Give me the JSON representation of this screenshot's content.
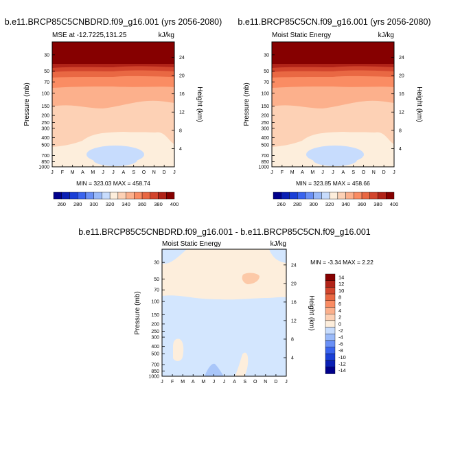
{
  "palette": {
    "fields": [
      "#00008b",
      "#0a1fb4",
      "#1a3fd6",
      "#3a64ee",
      "#6a90f6",
      "#9abaf9",
      "#c7dcfd",
      "#fdeedc",
      "#fdd1b5",
      "#fcb08c",
      "#fa8c63",
      "#e96843",
      "#d2452d",
      "#b12318",
      "#860000"
    ]
  },
  "panels": [
    {
      "id": "panel-brd",
      "title": "b.e11.BRCP85C5CNBDRD.f09_g16.001 (yrs 2056-2080)",
      "left_label": "MSE at -12.7225,131.25",
      "right_label": "kJ/kg",
      "stats": "MIN = 323.03 MAX = 458.74",
      "colorbar_labels": [
        "260",
        "280",
        "300",
        "320",
        "340",
        "360",
        "380",
        "400"
      ]
    },
    {
      "id": "panel-cn",
      "title": "b.e11.BRCP85C5CN.f09_g16.001 (yrs 2056-2080)",
      "left_label": "Moist Static Energy",
      "right_label": "kJ/kg",
      "stats": "MIN = 323.85 MAX = 458.66",
      "colorbar_labels": [
        "260",
        "280",
        "300",
        "320",
        "340",
        "360",
        "380",
        "400"
      ]
    },
    {
      "id": "panel-diff",
      "title": "b.e11.BRCP85C5CNBDRD.f09_g16.001 - b.e11.BRCP85C5CN.f09_g16.001",
      "left_label": "Moist Static Energy",
      "right_label": "kJ/kg",
      "stats": "MIN = -3.34 MAX = 2.22",
      "colorbar_labels": [
        "14",
        "12",
        "10",
        "8",
        "6",
        "4",
        "2",
        "0",
        "-2",
        "-4",
        "-6",
        "-8",
        "-10",
        "-12",
        "-14"
      ]
    }
  ],
  "chart_data": [
    {
      "type": "heatmap",
      "title": "b.e11.BRCP85C5CNBDRD.f09_g16.001 (yrs 2056-2080)",
      "subtitle": "MSE at -12.7225,131.25",
      "units": "kJ/kg",
      "xlabel": "",
      "ylabel": "Pressure (mb)",
      "y2label": "Height (km)",
      "x_ticks": [
        "J",
        "F",
        "M",
        "A",
        "M",
        "J",
        "J",
        "A",
        "S",
        "O",
        "N",
        "D",
        "J"
      ],
      "y_ticks": [
        "30",
        "50",
        "70",
        "100",
        "150",
        "200",
        "250",
        "300",
        "400",
        "500",
        "700",
        "850",
        "1000"
      ],
      "y2_ticks": [
        "24",
        "20",
        "16",
        "12",
        "8",
        "4"
      ],
      "y_scale": "log",
      "ylim": [
        1000,
        20
      ],
      "colorbar_levels": [
        260,
        270,
        280,
        290,
        300,
        310,
        320,
        330,
        340,
        350,
        360,
        370,
        380,
        390,
        400
      ],
      "min": 323.03,
      "max": 458.74
    },
    {
      "type": "heatmap",
      "title": "b.e11.BRCP85C5CN.f09_g16.001 (yrs 2056-2080)",
      "subtitle": "Moist Static Energy",
      "units": "kJ/kg",
      "xlabel": "",
      "ylabel": "Pressure (mb)",
      "y2label": "Height (km)",
      "x_ticks": [
        "J",
        "F",
        "M",
        "A",
        "M",
        "J",
        "J",
        "A",
        "S",
        "O",
        "N",
        "D",
        "J"
      ],
      "y_ticks": [
        "30",
        "50",
        "70",
        "100",
        "150",
        "200",
        "250",
        "300",
        "400",
        "500",
        "700",
        "850",
        "1000"
      ],
      "y2_ticks": [
        "24",
        "20",
        "16",
        "12",
        "8",
        "4"
      ],
      "y_scale": "log",
      "ylim": [
        1000,
        20
      ],
      "colorbar_levels": [
        260,
        270,
        280,
        290,
        300,
        310,
        320,
        330,
        340,
        350,
        360,
        370,
        380,
        390,
        400
      ],
      "min": 323.85,
      "max": 458.66
    },
    {
      "type": "heatmap",
      "title": "b.e11.BRCP85C5CNBDRD.f09_g16.001 - b.e11.BRCP85C5CN.f09_g16.001",
      "subtitle": "Moist Static Energy",
      "units": "kJ/kg",
      "xlabel": "",
      "ylabel": "Pressure (mb)",
      "y2label": "Height (km)",
      "x_ticks": [
        "J",
        "F",
        "M",
        "A",
        "M",
        "J",
        "J",
        "A",
        "S",
        "O",
        "N",
        "D",
        "J"
      ],
      "y_ticks": [
        "30",
        "50",
        "70",
        "100",
        "150",
        "200",
        "250",
        "300",
        "400",
        "500",
        "700",
        "850",
        "1000"
      ],
      "y2_ticks": [
        "24",
        "20",
        "16",
        "12",
        "8",
        "4"
      ],
      "y_scale": "log",
      "ylim": [
        1000,
        20
      ],
      "colorbar_levels": [
        -14,
        -12,
        -10,
        -8,
        -6,
        -4,
        -2,
        0,
        2,
        4,
        6,
        8,
        10,
        12,
        14
      ],
      "min": -3.34,
      "max": 2.22
    }
  ]
}
